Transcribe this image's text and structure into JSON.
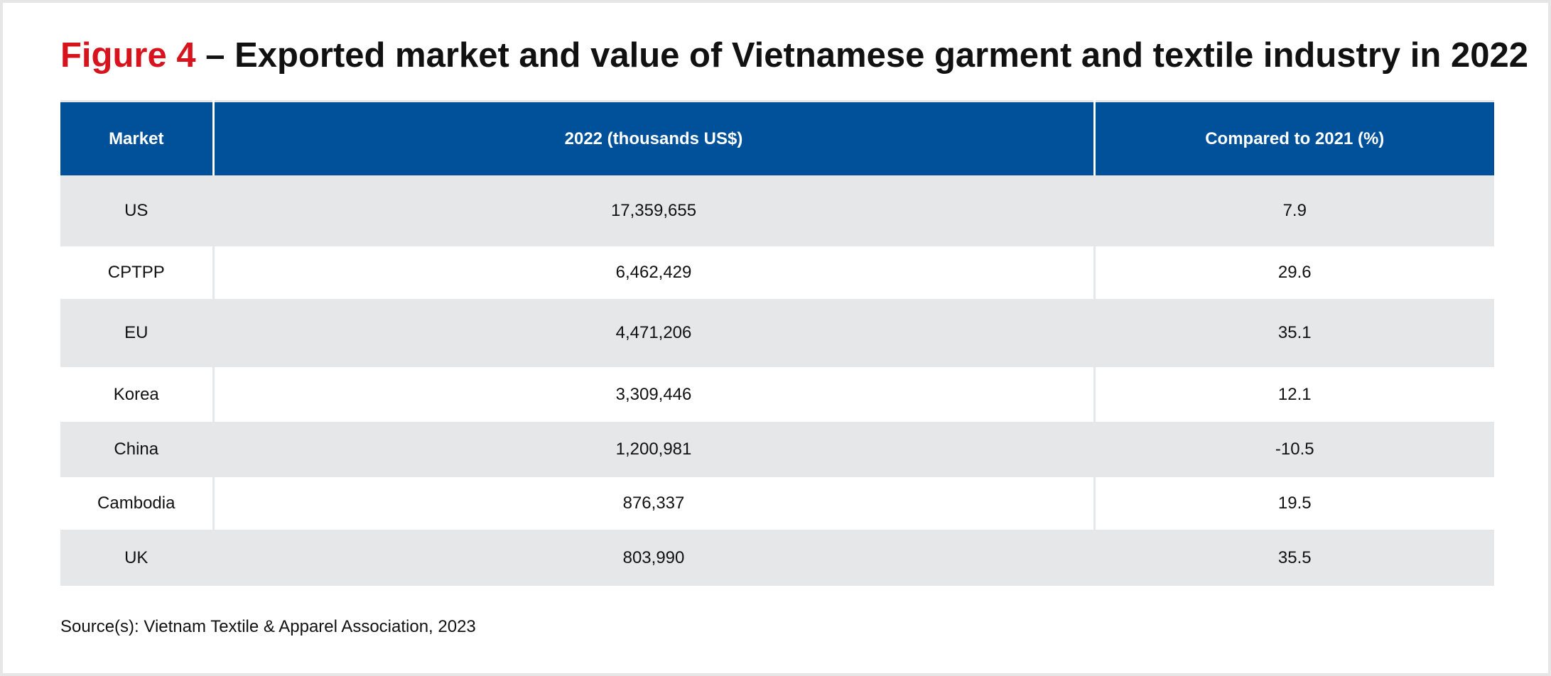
{
  "figure": {
    "label": "Figure 4",
    "title": " – Exported market and value of Vietnamese garment and textile industry in 2022",
    "label_color": "#d7141e"
  },
  "table": {
    "header_color": "#00519a",
    "stripe_color": "#e6e7e9",
    "columns": [
      "Market",
      "2022 (thousands US$)",
      "Compared to 2021 (%)"
    ],
    "rows": [
      [
        "US",
        "17,359,655",
        "7.9"
      ],
      [
        "CPTPP",
        "6,462,429",
        "29.6"
      ],
      [
        "EU",
        "4,471,206",
        "35.1"
      ],
      [
        "Korea",
        "3,309,446",
        "12.1"
      ],
      [
        "China",
        "1,200,981",
        "-10.5"
      ],
      [
        "Cambodia",
        "876,337",
        "19.5"
      ],
      [
        "UK",
        "803,990",
        "35.5"
      ]
    ]
  },
  "source": "Source(s): Vietnam Textile & Apparel Association, 2023"
}
